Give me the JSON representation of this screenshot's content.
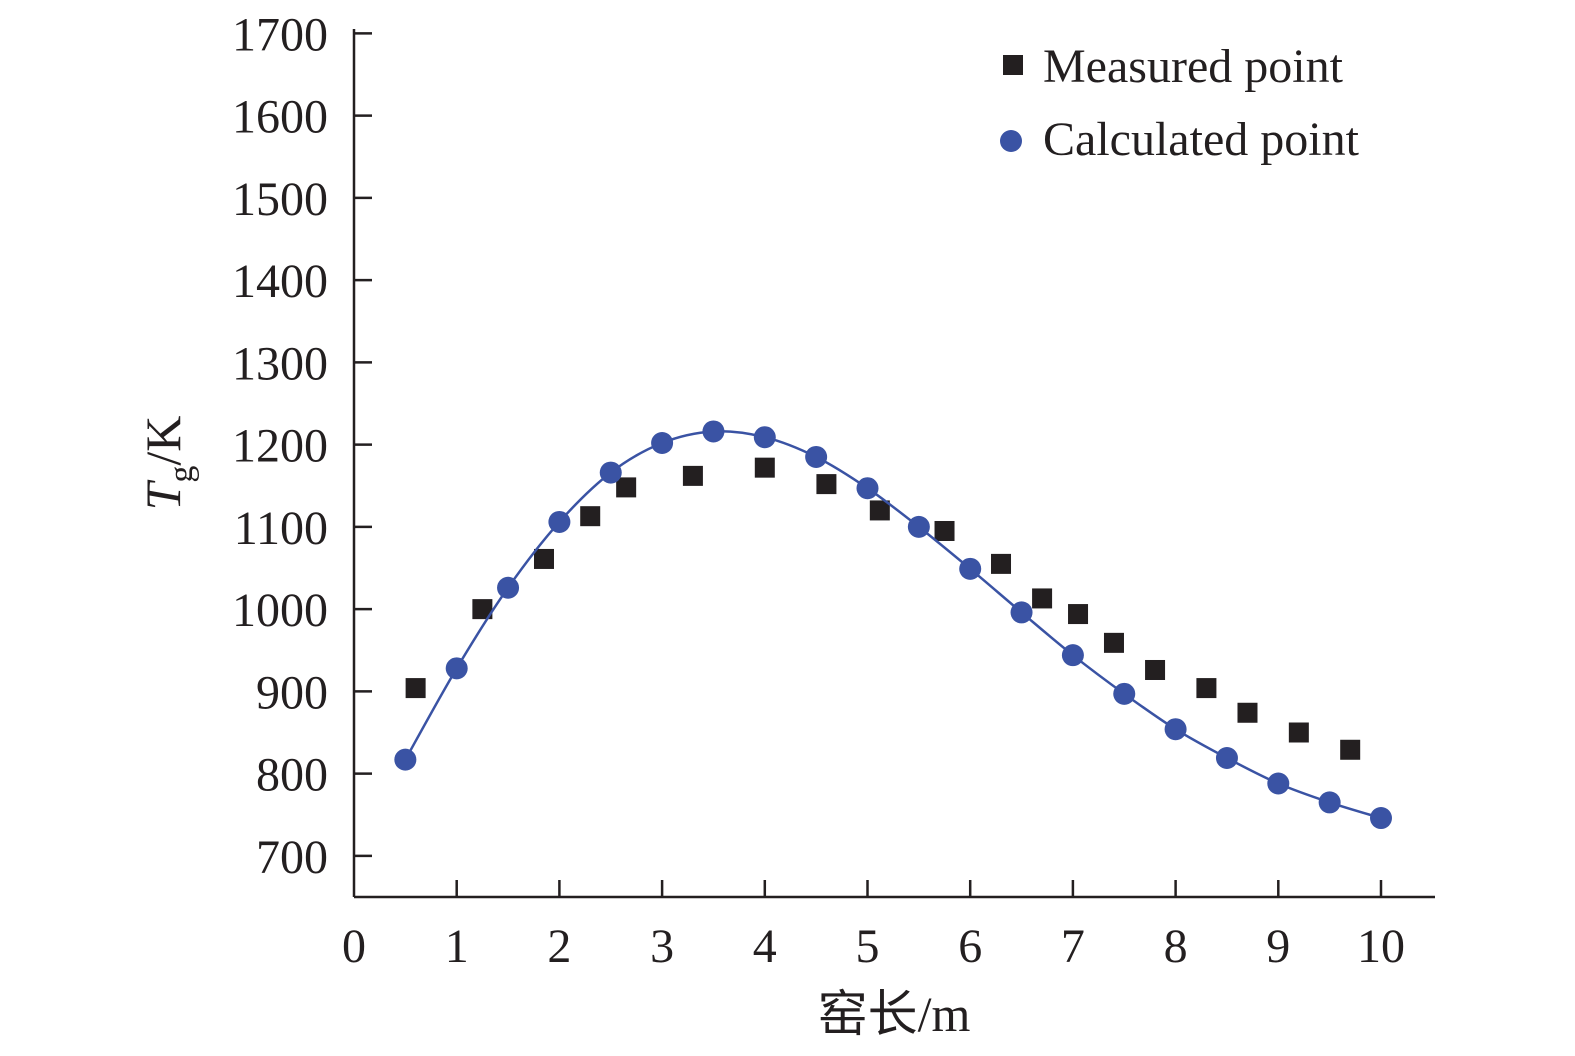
{
  "chart_data": {
    "type": "scatter",
    "xlabel": "窑长/m",
    "ylabel": {
      "symbol": "T",
      "subscript": "g",
      "unit": "/K"
    },
    "xlim": [
      0,
      10.5
    ],
    "ylim": [
      650,
      1700
    ],
    "x_ticks": [
      "0",
      "1",
      "2",
      "3",
      "4",
      "5",
      "6",
      "7",
      "8",
      "9",
      "10"
    ],
    "y_ticks": [
      "700",
      "800",
      "900",
      "1000",
      "1100",
      "1200",
      "1300",
      "1400",
      "1500",
      "1600",
      "1700"
    ],
    "grid": false,
    "legend_position": "top-right",
    "series": [
      {
        "name": "Measured point",
        "marker": "square",
        "color": "#231f20",
        "line": false,
        "points": [
          [
            0.6,
            904
          ],
          [
            1.25,
            1000
          ],
          [
            1.85,
            1061
          ],
          [
            2.3,
            1113
          ],
          [
            2.65,
            1148
          ],
          [
            3.3,
            1162
          ],
          [
            4.0,
            1172
          ],
          [
            4.6,
            1152
          ],
          [
            5.12,
            1120
          ],
          [
            5.75,
            1095
          ],
          [
            6.3,
            1055
          ],
          [
            6.7,
            1013
          ],
          [
            7.05,
            994
          ],
          [
            7.4,
            959
          ],
          [
            7.8,
            926
          ],
          [
            8.3,
            904
          ],
          [
            8.7,
            874
          ],
          [
            9.2,
            850
          ],
          [
            9.7,
            829
          ]
        ]
      },
      {
        "name": "Calculated point",
        "marker": "circle",
        "color": "#3a53a4",
        "line": true,
        "points": [
          [
            0.5,
            817
          ],
          [
            1.0,
            928
          ],
          [
            1.5,
            1026
          ],
          [
            2.0,
            1106
          ],
          [
            2.5,
            1166
          ],
          [
            3.0,
            1202
          ],
          [
            3.5,
            1216
          ],
          [
            4.0,
            1209
          ],
          [
            4.5,
            1185
          ],
          [
            5.0,
            1147
          ],
          [
            5.5,
            1100
          ],
          [
            6.0,
            1049
          ],
          [
            6.5,
            996
          ],
          [
            7.0,
            944
          ],
          [
            7.5,
            897
          ],
          [
            8.0,
            854
          ],
          [
            8.5,
            819
          ],
          [
            9.0,
            788
          ],
          [
            9.5,
            765
          ],
          [
            10.0,
            746
          ]
        ]
      }
    ]
  }
}
